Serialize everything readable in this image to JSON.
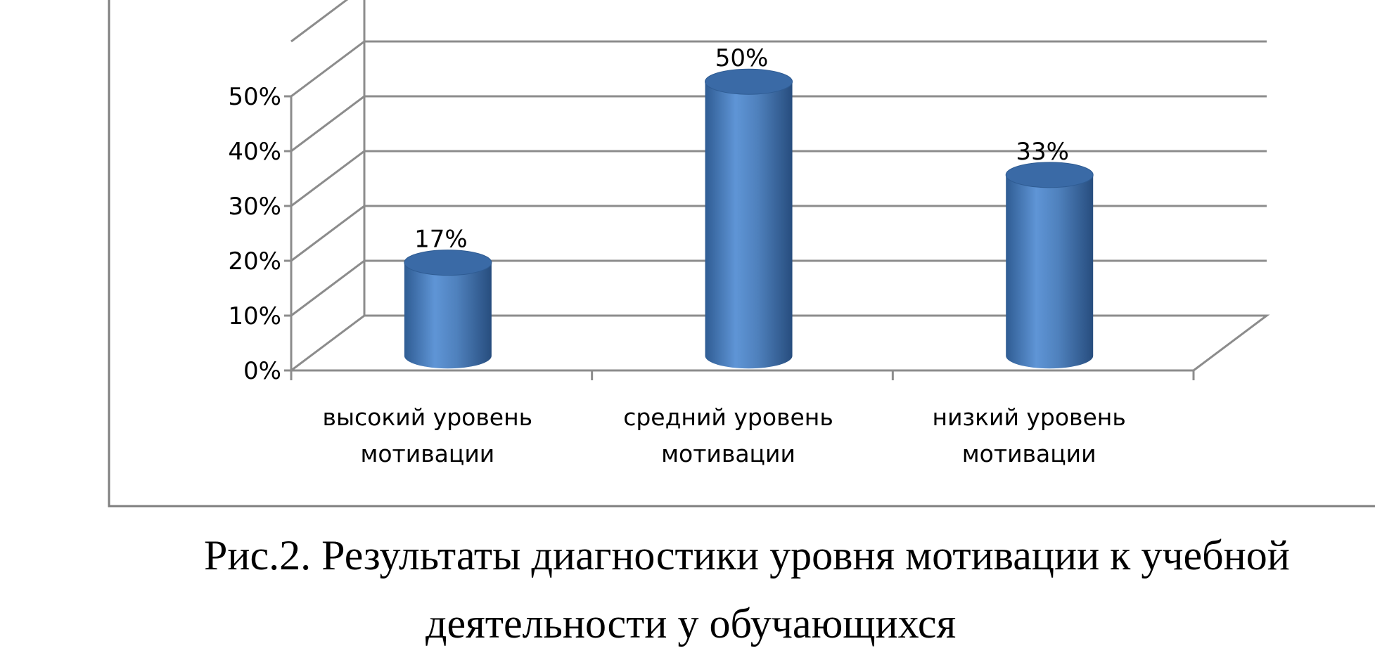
{
  "chart_data": {
    "type": "bar",
    "style": "3d-cylinder",
    "categories": [
      [
        "высокий уровень",
        "мотивации"
      ],
      [
        "средний уровень",
        "мотивации"
      ],
      [
        "низкий уровень",
        "мотивации"
      ]
    ],
    "values": [
      17,
      50,
      33
    ],
    "value_labels": [
      "17%",
      "50%",
      "33%"
    ],
    "y_ticks": [
      "0%",
      "10%",
      "20%",
      "30%",
      "40%",
      "50%"
    ],
    "ylim": [
      0,
      50
    ],
    "grid": true,
    "legend": "none",
    "bar_color": "#4F81BD"
  },
  "caption": {
    "line1": "Рис.2. Результаты диагностики уровня мотивации к учебной",
    "line2": "деятельности у обучающихся"
  }
}
